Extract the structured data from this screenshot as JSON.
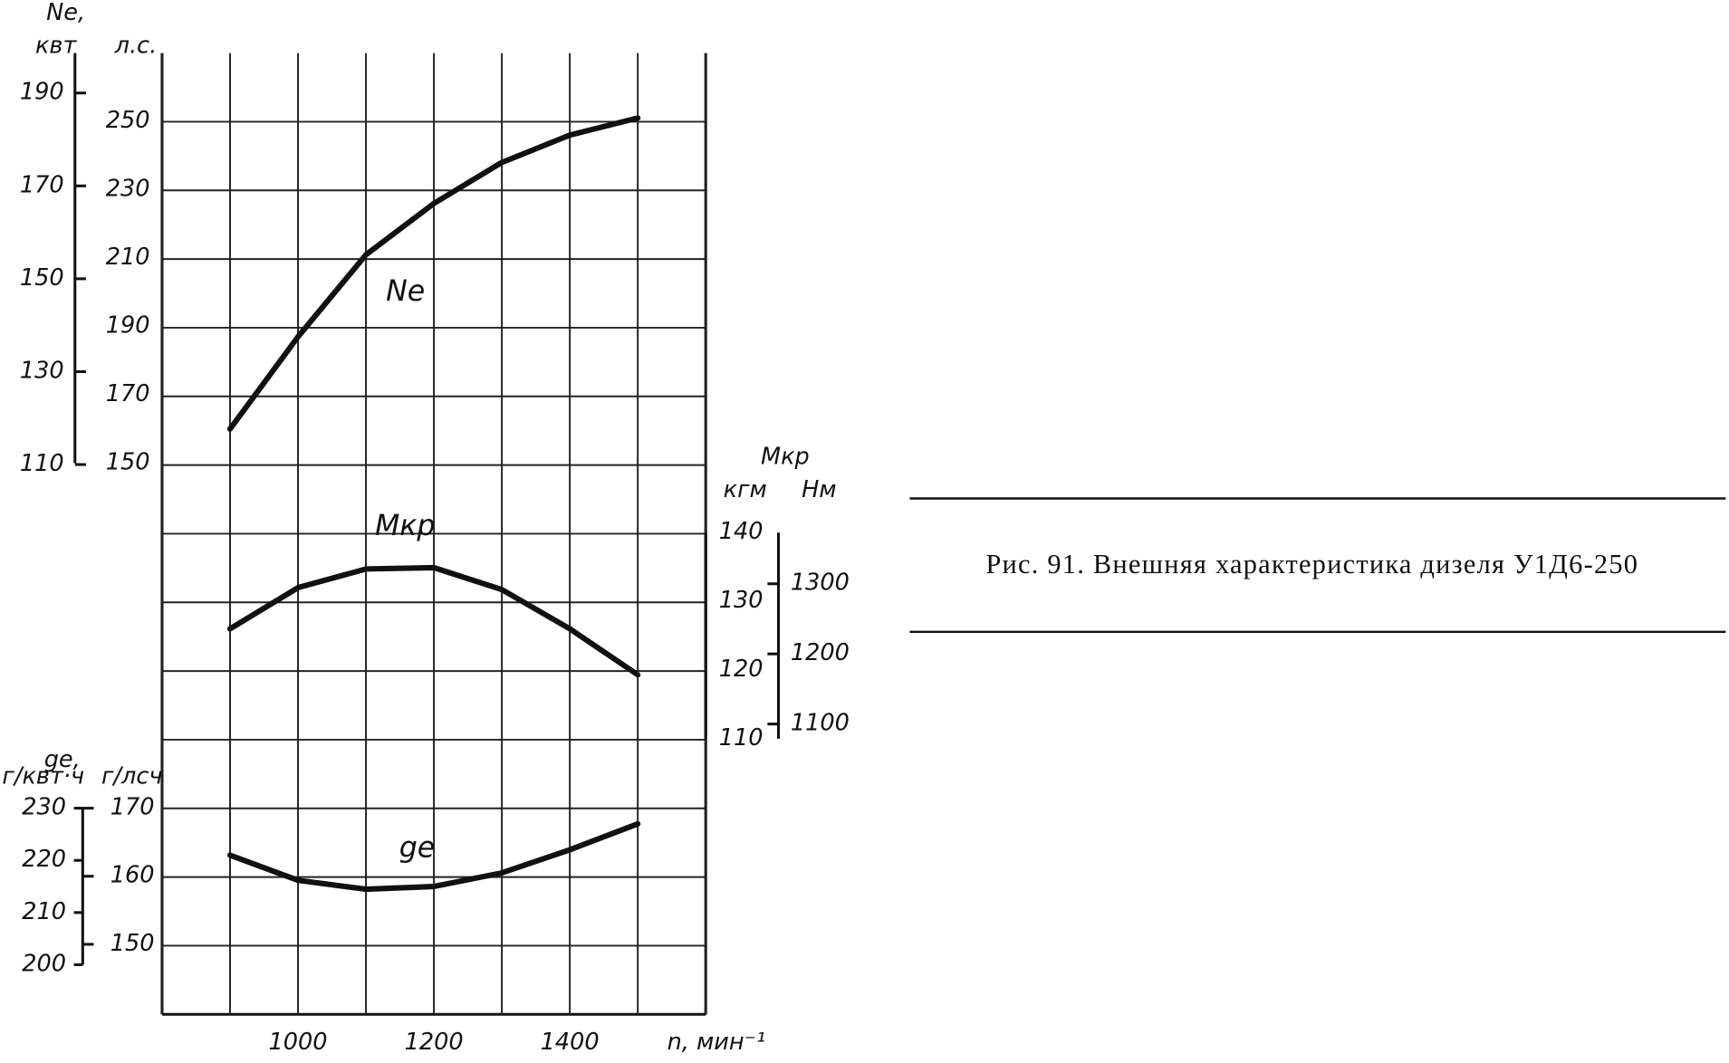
{
  "chart_data": {
    "type": "line",
    "xlim": [
      800,
      1600
    ],
    "xticks": [
      1000,
      1200,
      1400
    ],
    "xgrid": [
      800,
      900,
      1000,
      1100,
      1200,
      1300,
      1400,
      1500,
      1600
    ],
    "xlabel": "n, мин⁻¹",
    "caption": "Рис. 91. Внешняя характеристика дизеля У1Д6-250",
    "panels": [
      {
        "label": "Ne,",
        "yunit": "л.с.",
        "y2unit": "квт",
        "ylim": [
          150,
          270
        ],
        "yticks": [
          150,
          170,
          190,
          210,
          230,
          250
        ],
        "y2lim": [
          110.3,
          198.6
        ],
        "y2ticks": [
          110,
          130,
          150,
          170,
          190
        ],
        "series": [
          {
            "name": "Ne",
            "color": "#111111",
            "x": [
              900,
              1000,
              1100,
              1200,
              1300,
              1400,
              1500
            ],
            "values": [
              160,
              187,
              211,
              226,
              238,
              246,
              251
            ]
          }
        ]
      },
      {
        "label": "Mкр",
        "yunit": "кгм",
        "y2unit": "Нм",
        "ylim": [
          110,
          140
        ],
        "yticks": [
          110,
          120,
          130,
          140
        ],
        "y2lim": [
          1079,
          1373
        ],
        "y2ticks": [
          1100,
          1200,
          1300
        ],
        "series": [
          {
            "name": "Mкр",
            "color": "#111111",
            "x": [
              900,
              1000,
              1100,
              1200,
              1300,
              1400,
              1500
            ],
            "values": [
              126,
              132,
              134.7,
              134.9,
              131.7,
              126,
              119.3
            ]
          }
        ]
      },
      {
        "label": "ge,",
        "yunit": "г/лсч",
        "y2unit": "г/квт·ч",
        "ylim": [
          147,
          170
        ],
        "yticks": [
          150,
          160,
          170
        ],
        "y2lim": [
          200,
          230
        ],
        "y2ticks": [
          200,
          210,
          220,
          230
        ],
        "series": [
          {
            "name": "ge",
            "color": "#111111",
            "x": [
              900,
              1000,
              1100,
              1200,
              1300,
              1400,
              1500
            ],
            "values": [
              163.1,
              159.4,
              158.1,
              158.5,
              160.5,
              163.9,
              167.7
            ]
          }
        ]
      }
    ]
  }
}
